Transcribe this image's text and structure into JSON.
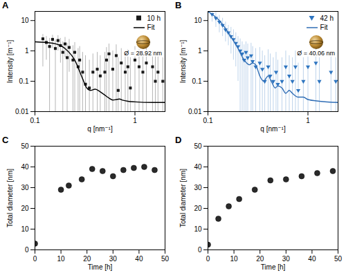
{
  "chart_data": [
    {
      "type": "scatter",
      "title": "A",
      "log": true,
      "legend": "upper right",
      "x_label": "q [nm⁻¹]",
      "y_label": "Intensity [m⁻¹]",
      "xlim": [
        0.1,
        2
      ],
      "xticks": [
        0.1,
        1
      ],
      "ylim": [
        0.01,
        20
      ],
      "yticks": [
        0.01,
        0.1,
        1,
        10
      ],
      "annotations": [
        "Ø = 28.92 nm"
      ],
      "series": [
        {
          "name": "10 h",
          "type": "scatter",
          "marker": "square",
          "color": "#1a1a1a",
          "x": [
            0.12,
            0.13,
            0.14,
            0.15,
            0.16,
            0.17,
            0.18,
            0.19,
            0.2,
            0.21,
            0.22,
            0.24,
            0.25,
            0.27,
            0.28,
            0.3,
            0.32,
            0.35,
            0.38,
            0.42,
            0.45,
            0.5,
            0.52,
            0.55,
            0.6,
            0.65,
            0.68,
            0.73,
            0.8,
            0.85,
            0.9,
            1.0,
            1.1,
            1.2,
            1.3,
            1.5,
            1.6,
            1.7,
            1.9
          ],
          "values": [
            2.5,
            1.9,
            1.4,
            2.4,
            1.2,
            2.2,
            1.5,
            0.9,
            1.7,
            0.6,
            1.3,
            0.5,
            0.9,
            0.3,
            0.5,
            0.2,
            0.08,
            0.06,
            0.2,
            0.25,
            0.15,
            0.2,
            0.5,
            0.8,
            0.25,
            0.7,
            0.05,
            0.4,
            0.2,
            0.3,
            0.06,
            0.5,
            0.3,
            0.2,
            0.4,
            0.3,
            0.1,
            0.2,
            0.1
          ],
          "error_low": [
            0.3,
            0.5,
            0.001,
            1.2,
            0.001,
            1.0,
            0.4,
            0.001,
            0.6,
            0.001,
            0.2,
            0.001,
            0.001,
            0.001,
            0.001,
            0.001,
            0.001,
            0.001,
            0.001,
            0.001,
            0.001,
            0.001,
            0.001,
            0.001,
            0.001,
            0.001,
            0.001,
            0.001,
            0.001,
            0.001,
            0.001,
            0.001,
            0.001,
            0.001,
            0.001,
            0.001,
            0.001,
            0.001,
            0.001
          ],
          "error_high": [
            3.5,
            3.0,
            2.6,
            3.3,
            2.3,
            3.2,
            2.6,
            2.0,
            2.8,
            1.8,
            2.4,
            1.5,
            1.9,
            1.2,
            1.4,
            0.9,
            0.7,
            0.5,
            0.8,
            0.9,
            0.7,
            0.9,
            1.3,
            1.7,
            1.0,
            1.6,
            0.6,
            1.2,
            0.9,
            1.1,
            0.6,
            1.4,
            1.1,
            0.9,
            1.2,
            1.0,
            0.7,
            0.8,
            0.6
          ]
        },
        {
          "name": "Fit",
          "type": "line",
          "color": "#000000",
          "x": [
            0.1,
            0.15,
            0.2,
            0.25,
            0.3,
            0.33,
            0.36,
            0.4,
            0.45,
            0.5,
            0.55,
            0.6,
            0.65,
            0.7,
            0.75,
            0.85,
            1.0,
            1.5,
            2.0
          ],
          "values": [
            2.0,
            1.8,
            1.2,
            0.5,
            0.12,
            0.06,
            0.05,
            0.055,
            0.045,
            0.035,
            0.028,
            0.024,
            0.025,
            0.026,
            0.024,
            0.022,
            0.021,
            0.02,
            0.02
          ]
        }
      ]
    },
    {
      "type": "scatter",
      "title": "B",
      "log": true,
      "legend": "upper right",
      "x_label": "q [nm⁻¹]",
      "y_label": "Intensity [m⁻¹]",
      "xlim": [
        0.1,
        2
      ],
      "xticks": [
        0.1,
        1
      ],
      "ylim": [
        0.01,
        20
      ],
      "yticks": [
        0.01,
        0.1,
        1,
        10
      ],
      "annotations": [
        "Ø = 40.06 nm"
      ],
      "series": [
        {
          "name": "42 h",
          "type": "scatter",
          "marker": "triangle-down",
          "color": "#2e75c0",
          "x": [
            0.1,
            0.11,
            0.12,
            0.13,
            0.14,
            0.15,
            0.16,
            0.17,
            0.18,
            0.19,
            0.2,
            0.21,
            0.22,
            0.23,
            0.24,
            0.25,
            0.27,
            0.28,
            0.3,
            0.33,
            0.35,
            0.37,
            0.4,
            0.42,
            0.45,
            0.48,
            0.5,
            0.55,
            0.6,
            0.65,
            0.7,
            0.75,
            0.8,
            0.9,
            1.0,
            1.2,
            1.3,
            1.7,
            1.9
          ],
          "values": [
            20,
            16,
            12,
            9,
            7,
            5,
            4,
            3,
            2.4,
            1.8,
            1.4,
            1.0,
            0.8,
            0.5,
            0.9,
            0.6,
            0.7,
            0.45,
            0.3,
            0.4,
            0.25,
            0.1,
            0.3,
            0.15,
            0.1,
            0.2,
            0.08,
            0.1,
            0.3,
            0.15,
            0.1,
            0.3,
            0.05,
            0.1,
            0.3,
            0.4,
            0.1,
            0.2,
            0.1
          ],
          "error_low": [
            12,
            9,
            6,
            4,
            3,
            2,
            1.5,
            0.8,
            0.5,
            0.3,
            0.1,
            0.001,
            0.001,
            0.001,
            0.001,
            0.001,
            0.001,
            0.001,
            0.001,
            0.001,
            0.001,
            0.001,
            0.001,
            0.001,
            0.001,
            0.001,
            0.001,
            0.001,
            0.001,
            0.001,
            0.001,
            0.001,
            0.001,
            0.001,
            0.001,
            0.001,
            0.001,
            0.001,
            0.001
          ],
          "error_high": [
            30,
            25,
            19,
            15,
            12,
            9,
            7,
            6,
            5,
            4,
            3,
            2.5,
            2,
            1.6,
            2,
            1.7,
            1.8,
            1.4,
            1.2,
            1.3,
            1.0,
            0.7,
            1.1,
            0.8,
            0.6,
            0.9,
            0.5,
            0.6,
            1.0,
            0.7,
            0.6,
            1.0,
            0.4,
            0.6,
            1.0,
            1.2,
            0.6,
            0.8,
            0.6
          ]
        },
        {
          "name": "Fit",
          "type": "line",
          "color": "#2f6db5",
          "x": [
            0.1,
            0.13,
            0.16,
            0.2,
            0.23,
            0.26,
            0.28,
            0.3,
            0.33,
            0.36,
            0.4,
            0.43,
            0.47,
            0.5,
            0.55,
            0.6,
            0.65,
            0.7,
            0.8,
            0.9,
            1.0,
            1.3,
            2.0
          ],
          "values": [
            20,
            10,
            4,
            1.2,
            0.5,
            0.35,
            0.4,
            0.35,
            0.15,
            0.1,
            0.15,
            0.1,
            0.06,
            0.07,
            0.06,
            0.04,
            0.05,
            0.04,
            0.03,
            0.03,
            0.025,
            0.022,
            0.02
          ]
        }
      ]
    },
    {
      "type": "scatter",
      "title": "C",
      "x_label": "Time [h]",
      "y_label": "Total diameter [nm]",
      "xlim": [
        0,
        50
      ],
      "xticks": [
        0,
        10,
        20,
        30,
        40,
        50
      ],
      "ylim": [
        0,
        50
      ],
      "yticks": [
        0,
        10,
        20,
        30,
        40,
        50
      ],
      "series": [
        {
          "type": "scatter",
          "marker": "circle",
          "color": "#2a2a2a",
          "x": [
            0,
            10,
            13,
            18,
            22,
            26,
            30,
            34,
            38,
            42,
            46
          ],
          "values": [
            3,
            29,
            31,
            34,
            39,
            38,
            35.5,
            38.5,
            39.5,
            40,
            38.5
          ]
        }
      ]
    },
    {
      "type": "scatter",
      "title": "D",
      "x_label": "Time [h]",
      "y_label": "Total diameter [nm]",
      "xlim": [
        0,
        50
      ],
      "xticks": [
        0,
        10,
        20,
        30,
        40,
        50
      ],
      "ylim": [
        0,
        50
      ],
      "yticks": [
        0,
        10,
        20,
        30,
        40,
        50
      ],
      "series": [
        {
          "type": "scatter",
          "marker": "circle",
          "color": "#2a2a2a",
          "x": [
            0,
            4,
            8,
            12,
            18,
            24,
            30,
            36,
            42,
            48
          ],
          "values": [
            2.5,
            15,
            21,
            24.5,
            29,
            33.5,
            34,
            35.5,
            37,
            38
          ]
        }
      ]
    }
  ]
}
